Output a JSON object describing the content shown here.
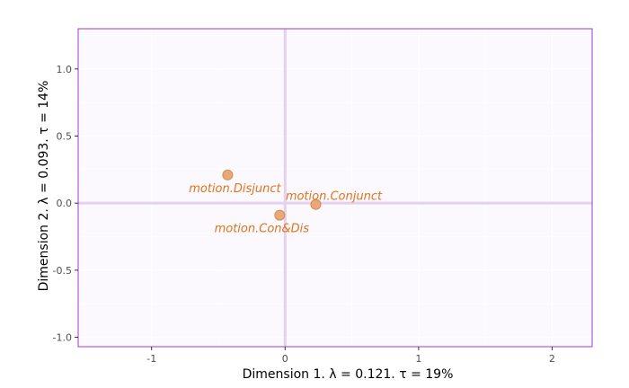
{
  "chart_data": {
    "type": "scatter",
    "title": "",
    "xlabel": "Dimension 1.   λ = 0.121.  τ = 19%",
    "ylabel": "Dimension 2.   λ = 0.093.  τ = 14%",
    "xlim": [
      -1.55,
      2.3
    ],
    "ylim": [
      -1.07,
      1.3
    ],
    "x_ticks": [
      -1,
      0,
      1,
      2
    ],
    "y_ticks": [
      -1.0,
      -0.5,
      0.0,
      0.5,
      1.0
    ],
    "x_tick_labels": [
      "-1",
      "0",
      "1",
      "2"
    ],
    "y_tick_labels": [
      "-1.0",
      "-0.5",
      "0.0",
      "0.5",
      "1.0"
    ],
    "grid": true,
    "reference_lines": {
      "x": 0,
      "y": 0
    },
    "points": [
      {
        "label": "motion.Disjunct",
        "x": -0.43,
        "y": 0.21
      },
      {
        "label": "motion.Conjunct",
        "x": 0.23,
        "y": -0.01
      },
      {
        "label": "motion.Con&Dis",
        "x": -0.04,
        "y": -0.09
      }
    ],
    "colors": {
      "point_fill": "#e8a878",
      "point_stroke": "#d9894d",
      "label": "#e0741c",
      "panel_background": "#fbf8fe",
      "panel_border": "#9b3fc0",
      "reference_line": "#e3d2ee",
      "grid": "#ffffff"
    }
  }
}
